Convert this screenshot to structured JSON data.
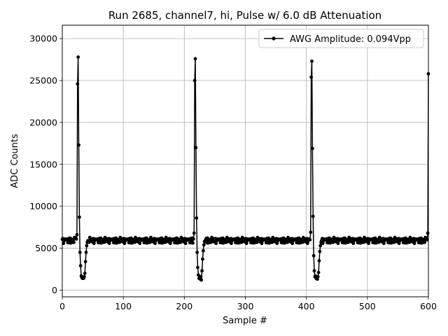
{
  "chart_data": {
    "type": "line",
    "title": "Run 2685, channel7, hi, Pulse w/ 6.0 dB Attenuation",
    "xlabel": "Sample #",
    "ylabel": "ADC Counts",
    "xlim": [
      0,
      600
    ],
    "ylim": [
      -800,
      31600
    ],
    "xticks": [
      0,
      100,
      200,
      300,
      400,
      500,
      600
    ],
    "yticks": [
      0,
      5000,
      10000,
      15000,
      20000,
      25000,
      30000
    ],
    "grid": true,
    "legend_position": "top-right",
    "series": [
      {
        "name": "AWG Amplitude: 0.094Vpp",
        "color": "#000000",
        "marker": "circle",
        "baseline": 5900,
        "pulses": [
          {
            "x": [
              23,
              24,
              25,
              26,
              27,
              28,
              29,
              30,
              31,
              32,
              33,
              34,
              35,
              36,
              37,
              38,
              39,
              40,
              41,
              42
            ],
            "y": [
              6100,
              6600,
              24600,
              27800,
              17300,
              8700,
              4500,
              2900,
              1700,
              1500,
              1400,
              1500,
              1400,
              1600,
              2000,
              3400,
              4500,
              5300,
              5700,
              5900
            ]
          },
          {
            "x": [
              215,
              216,
              217,
              218,
              219,
              220,
              221,
              222,
              223,
              224,
              225,
              226,
              227,
              228,
              229,
              230,
              231,
              232,
              233,
              234
            ],
            "y": [
              6100,
              6800,
              25000,
              27600,
              17000,
              8600,
              4500,
              2700,
              1800,
              1400,
              1500,
              1300,
              1600,
              1200,
              2300,
              3700,
              4700,
              5400,
              5800,
              5900
            ]
          },
          {
            "x": [
              406,
              407,
              408,
              409,
              410,
              411,
              412,
              413,
              414,
              415,
              416,
              417,
              418,
              419,
              420,
              421,
              422,
              423,
              424,
              425
            ],
            "y": [
              6000,
              6900,
              25400,
              27300,
              16900,
              8800,
              4100,
              2300,
              1600,
              1700,
              1400,
              1500,
              1300,
              1600,
              2100,
              3500,
              4600,
              5300,
              5700,
              5900
            ]
          },
          {
            "x": [
              598,
              599,
              600
            ],
            "y": [
              6000,
              6800,
              25800
            ]
          }
        ],
        "noise_pattern": [
          150,
          -200,
          60,
          300,
          -350,
          100,
          -50,
          250,
          -150,
          380,
          -280,
          20,
          200,
          -100,
          -330,
          120,
          280,
          -60,
          50,
          -240,
          330,
          -20,
          -170,
          230,
          -90,
          150,
          -380,
          80,
          190,
          -120,
          40,
          350,
          -210,
          -30,
          270,
          -310,
          110,
          -140,
          210,
          -70,
          390,
          -260,
          10,
          170,
          -190
        ]
      }
    ]
  }
}
